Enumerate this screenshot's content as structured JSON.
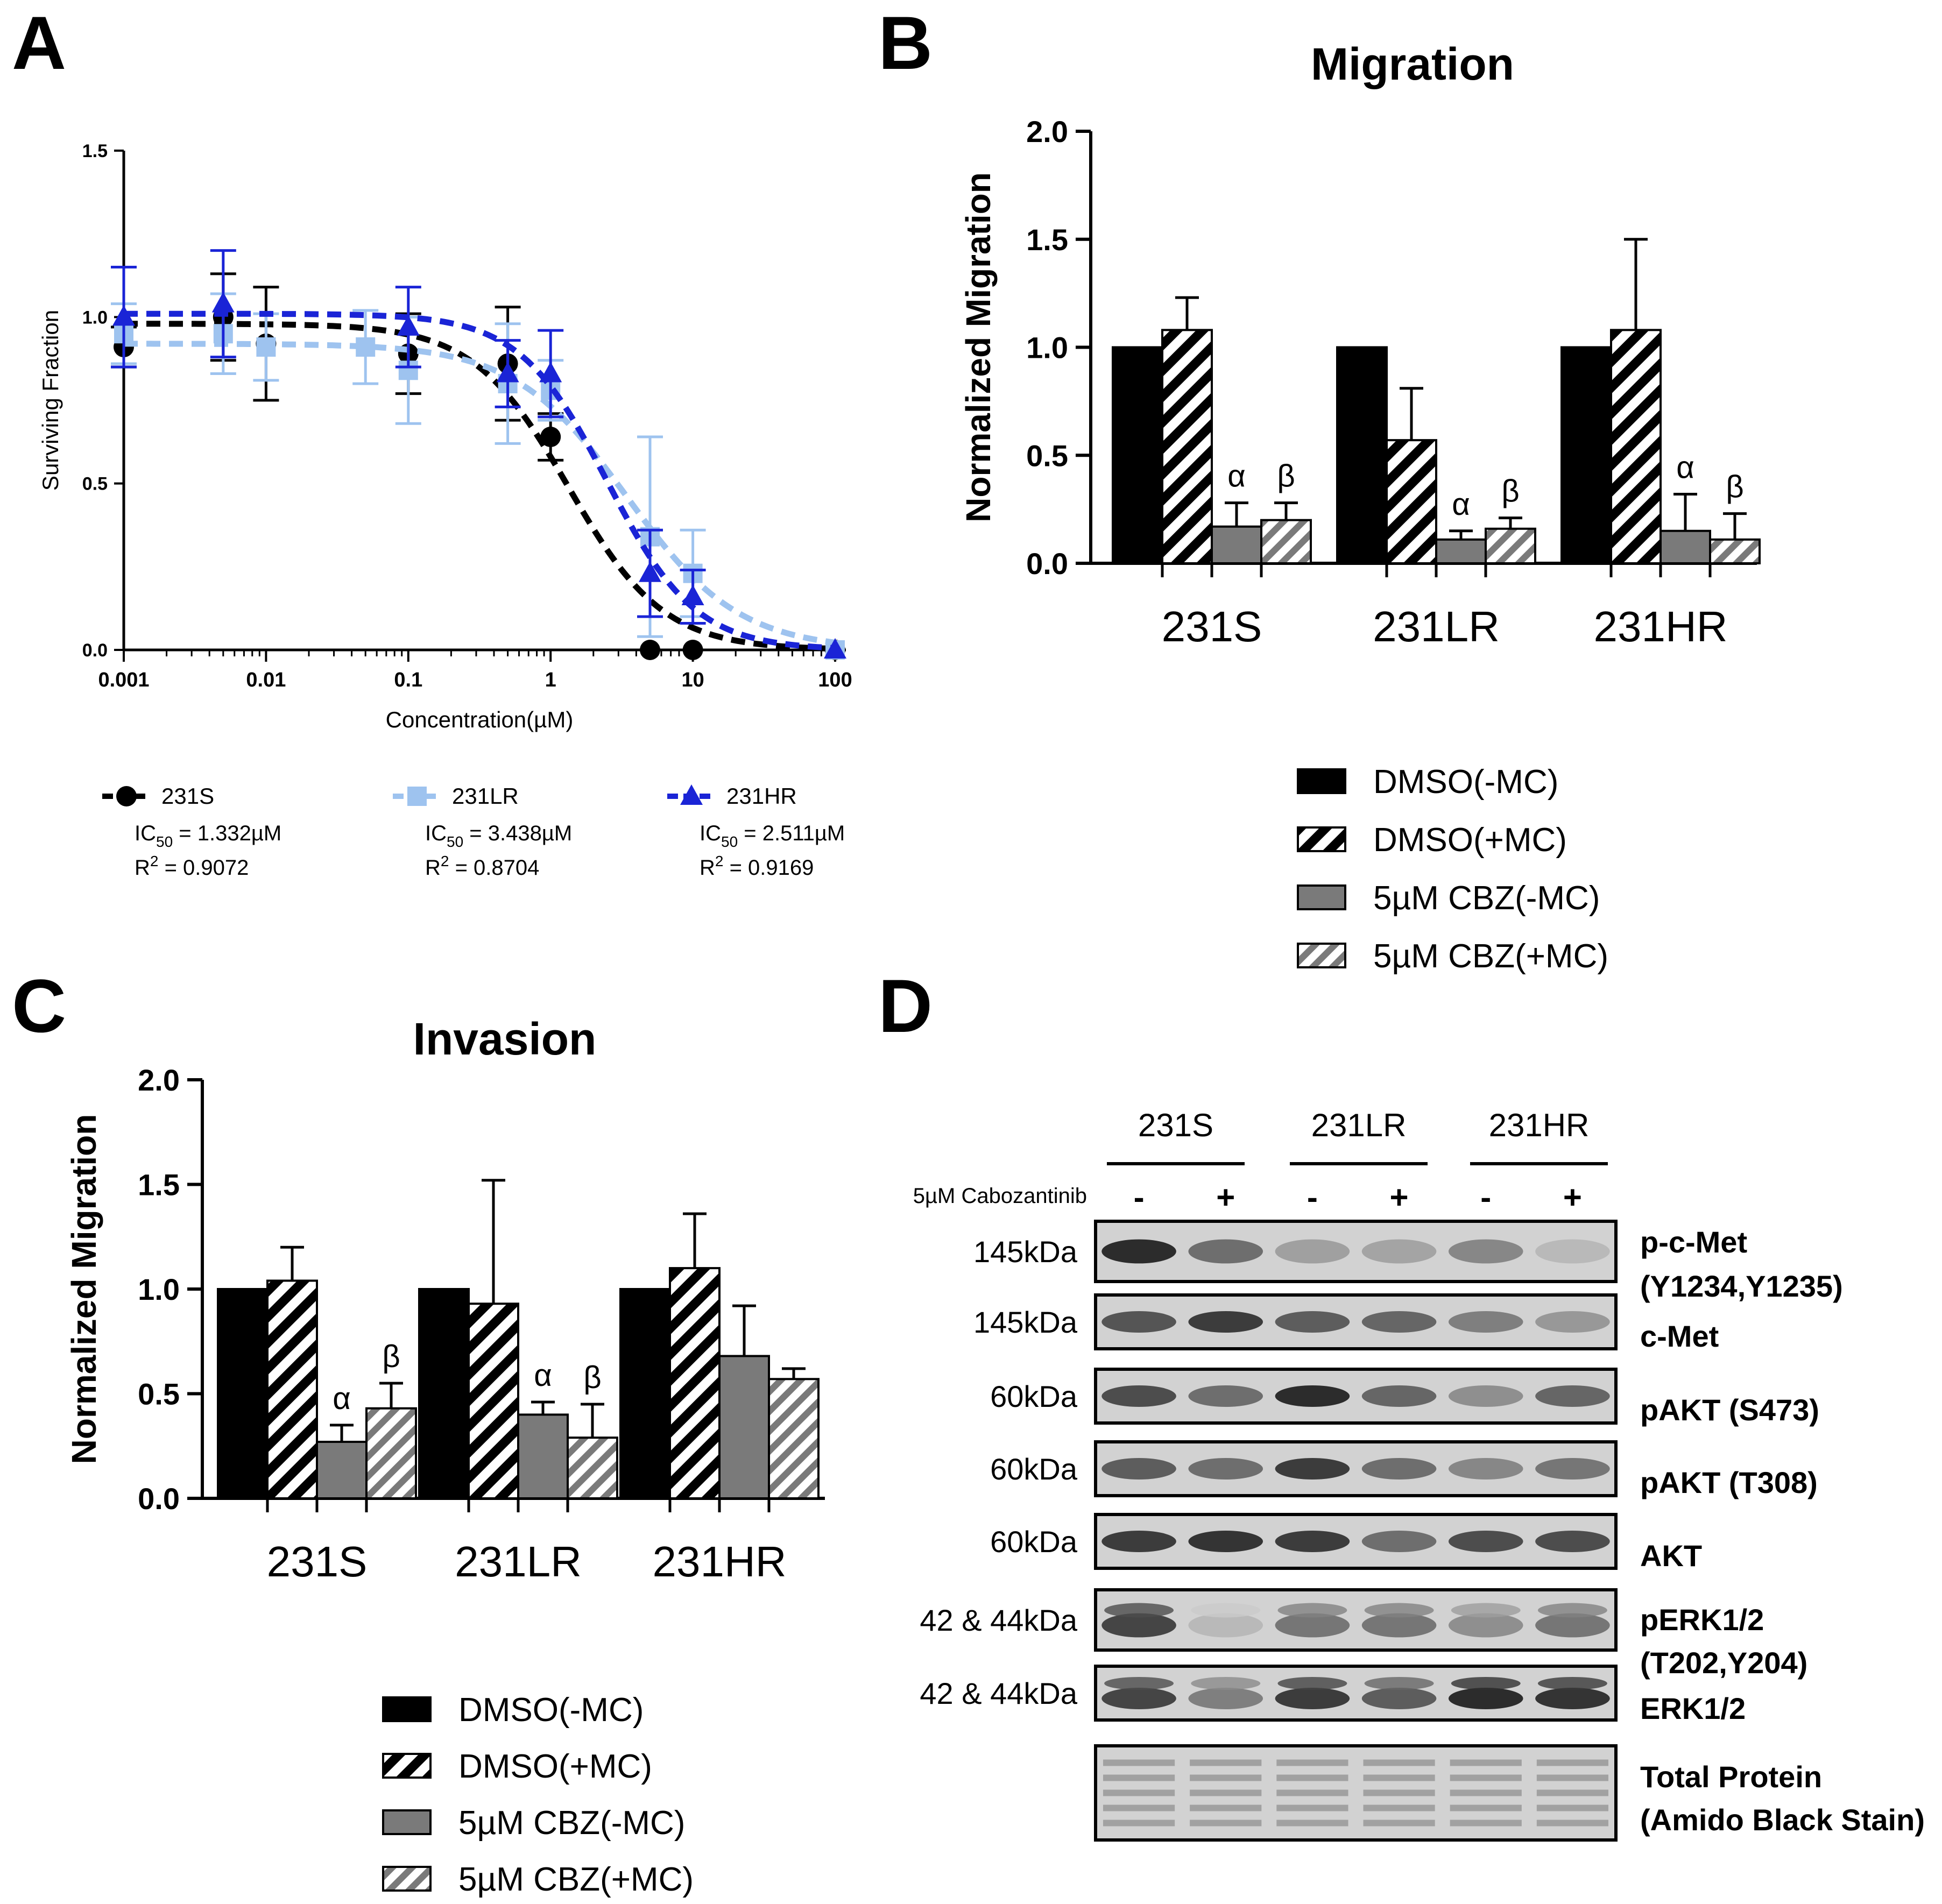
{
  "panel_labels": {
    "a": "A",
    "b": "B",
    "c": "C",
    "d": "D"
  },
  "colors": {
    "s": "#000000",
    "lr": "#9ec3ef",
    "hr": "#1a24d6",
    "bar_dark": "#000000",
    "bar_gray": "#7a7a7a",
    "blot_bg": "#d2d2d2"
  },
  "chart_data": [
    {
      "id": "A",
      "type": "scatter",
      "title": "",
      "xlabel": "Concentration(µM)",
      "ylabel": "Surviving Fraction",
      "xscale": "log",
      "xlim": [
        0.001,
        100
      ],
      "ylim": [
        0.0,
        1.5
      ],
      "xticks": [
        "0.001",
        "0.01",
        "0.1",
        "1",
        "10",
        "100"
      ],
      "yticks": [
        "0.0",
        "0.5",
        "1.0",
        "1.5"
      ],
      "series": [
        {
          "key": "s",
          "name": "231S",
          "marker": "circle",
          "ic50_label": "IC",
          "ic50_sub": "50",
          "ic50_value": " =  1.332µM",
          "r2_label": "R",
          "r2_sup": "2",
          "r2_value": " = 0.9072",
          "x": [
            0.001,
            0.005,
            0.01,
            0.1,
            0.5,
            1,
            5,
            10,
            100
          ],
          "y": [
            0.91,
            1.0,
            0.92,
            0.89,
            0.86,
            0.64,
            0.0,
            0.0,
            0.0
          ],
          "err": [
            0.06,
            0.13,
            0.17,
            0.12,
            0.17,
            0.07,
            0.0,
            0.0,
            0.0
          ],
          "fit": {
            "top": 0.98,
            "bottom": 0.0,
            "ic50": 1.332,
            "hill": 1.3
          }
        },
        {
          "key": "lr",
          "name": "231LR",
          "marker": "square",
          "ic50_label": "IC",
          "ic50_sub": "50",
          "ic50_value": " =  3.438µM",
          "r2_label": "R",
          "r2_sup": "2",
          "r2_value": " = 0.8704",
          "x": [
            0.001,
            0.005,
            0.01,
            0.05,
            0.1,
            0.5,
            1,
            5,
            10,
            100
          ],
          "y": [
            0.95,
            0.95,
            0.91,
            0.91,
            0.84,
            0.8,
            0.78,
            0.34,
            0.23,
            0.0
          ],
          "err": [
            0.09,
            0.12,
            0.1,
            0.11,
            0.16,
            0.18,
            0.09,
            0.3,
            0.13,
            0.0
          ],
          "fit": {
            "top": 0.92,
            "bottom": 0.0,
            "ic50": 3.438,
            "hill": 1.1
          }
        },
        {
          "key": "hr",
          "name": "231HR",
          "marker": "triangle",
          "ic50_label": "IC",
          "ic50_sub": "50",
          "ic50_value": " =  2.511µM",
          "r2_label": "R",
          "r2_sup": "2",
          "r2_value": " = 0.9169",
          "x": [
            0.001,
            0.005,
            0.1,
            0.5,
            1,
            5,
            10,
            100
          ],
          "y": [
            1.0,
            1.04,
            0.97,
            0.83,
            0.83,
            0.23,
            0.16,
            0.0
          ],
          "err": [
            0.15,
            0.16,
            0.12,
            0.1,
            0.13,
            0.13,
            0.08,
            0.0
          ],
          "fit": {
            "top": 1.01,
            "bottom": 0.0,
            "ic50": 2.511,
            "hill": 1.4
          }
        }
      ]
    },
    {
      "id": "B",
      "type": "bar",
      "title": "Migration",
      "ylabel": "Normalized Migration",
      "ylim": [
        0.0,
        2.0
      ],
      "yticks": [
        "0.0",
        "0.5",
        "1.0",
        "1.5",
        "2.0"
      ],
      "categories": [
        "231S",
        "231LR",
        "231HR"
      ],
      "series": [
        {
          "name": "DMSO(-MC)",
          "style": "solid-black",
          "values": [
            1.0,
            1.0,
            1.0
          ],
          "err": [
            0,
            0,
            0
          ],
          "annot": [
            "",
            "",
            ""
          ]
        },
        {
          "name": "DMSO(+MC)",
          "style": "hatch-black",
          "values": [
            1.08,
            0.57,
            1.08
          ],
          "err": [
            0.15,
            0.24,
            0.42
          ],
          "annot": [
            "",
            "",
            ""
          ]
        },
        {
          "name": "5µM CBZ(-MC)",
          "style": "solid-gray",
          "values": [
            0.17,
            0.11,
            0.15
          ],
          "err": [
            0.11,
            0.04,
            0.17
          ],
          "annot": [
            "α",
            "α",
            "α"
          ]
        },
        {
          "name": "5µM CBZ(+MC)",
          "style": "hatch-gray",
          "values": [
            0.2,
            0.16,
            0.11
          ],
          "err": [
            0.08,
            0.05,
            0.12
          ],
          "annot": [
            "β",
            "β",
            "β"
          ]
        }
      ]
    },
    {
      "id": "C",
      "type": "bar",
      "title": "Invasion",
      "ylabel": "Normalized Migration",
      "ylim": [
        0.0,
        2.0
      ],
      "yticks": [
        "0.0",
        "0.5",
        "1.0",
        "1.5",
        "2.0"
      ],
      "categories": [
        "231S",
        "231LR",
        "231HR"
      ],
      "series": [
        {
          "name": "DMSO(-MC)",
          "style": "solid-black",
          "values": [
            1.0,
            1.0,
            1.0
          ],
          "err": [
            0,
            0,
            0
          ],
          "annot": [
            "",
            "",
            ""
          ]
        },
        {
          "name": "DMSO(+MC)",
          "style": "hatch-black",
          "values": [
            1.04,
            0.93,
            1.1
          ],
          "err": [
            0.16,
            0.59,
            0.26
          ],
          "annot": [
            "",
            "",
            ""
          ]
        },
        {
          "name": "5µM CBZ(-MC)",
          "style": "solid-gray",
          "values": [
            0.27,
            0.4,
            0.68
          ],
          "err": [
            0.08,
            0.06,
            0.24
          ],
          "annot": [
            "α",
            "α",
            ""
          ]
        },
        {
          "name": "5µM CBZ(+MC)",
          "style": "hatch-gray",
          "values": [
            0.43,
            0.29,
            0.57
          ],
          "err": [
            0.12,
            0.16,
            0.05
          ],
          "annot": [
            "β",
            "β",
            ""
          ]
        }
      ]
    }
  ],
  "blot": {
    "groups": [
      "231S",
      "231LR",
      "231HR"
    ],
    "treatment_label": "5µM Cabozantinib",
    "signs": [
      "-",
      "+",
      "-",
      "+",
      "-",
      "+"
    ],
    "rows": [
      {
        "size": "145kDa",
        "label": [
          "p-c-Met",
          "(Y1234,Y1235)"
        ],
        "intensity": [
          0.95,
          0.55,
          0.25,
          0.22,
          0.4,
          0.1
        ]
      },
      {
        "size": "145kDa",
        "label": [
          "c-Met"
        ],
        "intensity": [
          0.7,
          0.85,
          0.65,
          0.6,
          0.45,
          0.3
        ]
      },
      {
        "size": "60kDa",
        "label": [
          "pAKT (S473)"
        ],
        "intensity": [
          0.75,
          0.55,
          0.95,
          0.6,
          0.35,
          0.6
        ]
      },
      {
        "size": "60kDa",
        "label": [
          "pAKT (T308)"
        ],
        "intensity": [
          0.65,
          0.55,
          0.85,
          0.55,
          0.4,
          0.5
        ]
      },
      {
        "size": "60kDa",
        "label": [
          "AKT"
        ],
        "intensity": [
          0.85,
          0.9,
          0.85,
          0.55,
          0.75,
          0.75
        ]
      },
      {
        "size": "42 & 44kDa",
        "label": [
          "pERK1/2",
          "(T202,Y204)"
        ],
        "intensity": [
          0.8,
          0.1,
          0.5,
          0.5,
          0.35,
          0.5
        ]
      },
      {
        "size": "42 & 44kDa",
        "label": [
          "ERK1/2"
        ],
        "intensity": [
          0.8,
          0.45,
          0.85,
          0.65,
          0.95,
          0.9
        ]
      },
      {
        "size": "",
        "label": [
          "Total Protein",
          "(Amido Black Stain)"
        ],
        "intensity": [
          0.5,
          0.5,
          0.5,
          0.5,
          0.5,
          0.5
        ]
      }
    ]
  }
}
